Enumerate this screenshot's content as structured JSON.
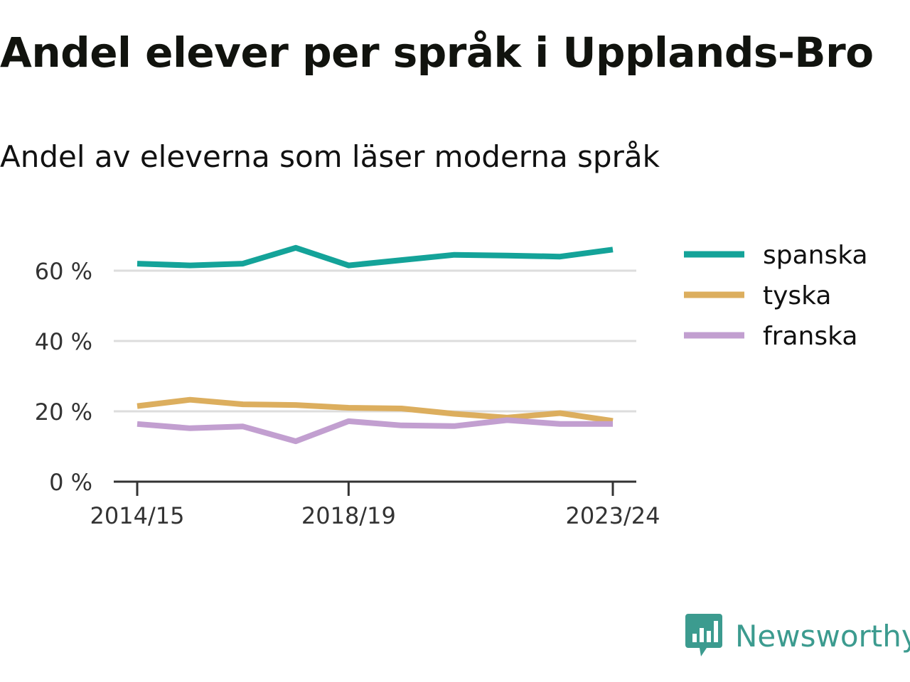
{
  "title": "Andel elever per språk i Upplands-Bro",
  "subtitle": "Andel av eleverna som läser moderna språk",
  "brand": {
    "name": "Newsworthy",
    "logo_icon": "newsworthy-bar-chart-logo"
  },
  "chart_data": {
    "type": "line",
    "title": "Andel elever per språk i Upplands-Bro",
    "subtitle": "Andel av eleverna som läser moderna språk",
    "xlabel": "",
    "ylabel": "",
    "x": [
      "2014/15",
      "2015/16",
      "2016/17",
      "2017/18",
      "2018/19",
      "2019/20",
      "2020/21",
      "2021/22",
      "2022/23",
      "2023/24"
    ],
    "x_tick_labels": [
      "2014/15",
      "2018/19",
      "2023/24"
    ],
    "y_ticks": [
      0,
      20,
      40,
      60
    ],
    "y_tick_labels": [
      "0 %",
      "20 %",
      "40 %",
      "60 %"
    ],
    "ylim": [
      0,
      70
    ],
    "grid": true,
    "legend_position": "right",
    "series": [
      {
        "name": "spanska",
        "color": "#14a399",
        "values": [
          62,
          61.5,
          62,
          66.5,
          61.5,
          63,
          64.5,
          64.3,
          64,
          66
        ]
      },
      {
        "name": "tyska",
        "color": "#dcae5e",
        "values": [
          21.5,
          23.3,
          22,
          21.8,
          21,
          20.8,
          19.3,
          18.2,
          19.5,
          17.3
        ]
      },
      {
        "name": "franska",
        "color": "#c29fd0",
        "values": [
          16.4,
          15.2,
          15.7,
          11.5,
          17.2,
          16,
          15.8,
          17.5,
          16.4,
          16.4
        ]
      }
    ]
  }
}
